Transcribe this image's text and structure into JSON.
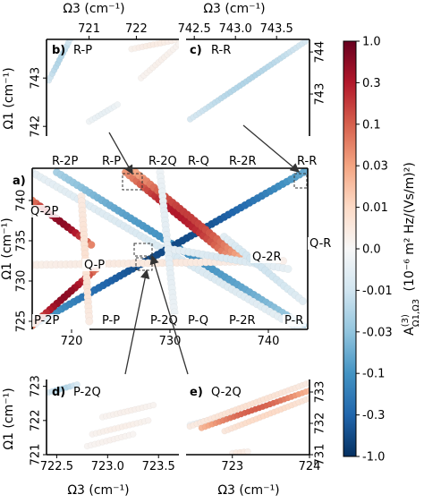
{
  "chart_data": {
    "type": "scatter",
    "colorbar": {
      "label_main": "A",
      "label_sup": "(3)",
      "label_sub": "Ω1,Ω3",
      "label_units": "(10⁻⁶ m² Hz/(Vs/m)²)",
      "ticks": [
        "1.0",
        "0.3",
        "0.1",
        "0.03",
        "0.01",
        "0.0",
        "-0.01",
        "-0.03",
        "-0.1",
        "-0.3",
        "-1.0"
      ],
      "colormap": [
        "#67001f",
        "#b2182b",
        "#d6604d",
        "#f4a582",
        "#fddbc7",
        "#f7f7f7",
        "#d1e5f0",
        "#92c5de",
        "#4393c3",
        "#2166ac",
        "#053061"
      ]
    },
    "panels": [
      {
        "id": "a",
        "label": "a)",
        "xlim": [
          716,
          744
        ],
        "ylim": [
          724,
          744
        ],
        "xticks": [
          "720",
          "730",
          "740"
        ],
        "xtick_values": [
          720,
          730,
          740
        ],
        "yticks": [
          "725",
          "730",
          "735",
          "740"
        ],
        "ytick_values": [
          725,
          730,
          735,
          740
        ],
        "xlabel": "",
        "ylabel": "Ω1 (cm⁻¹)",
        "region_labels": [
          "R-2P",
          "R-P",
          "R-2Q",
          "R-Q",
          "R-2R",
          "R-R",
          "Q-2P",
          "Q-P",
          "Q-2R",
          "Q-R",
          "P-2P",
          "P-P",
          "P-2Q",
          "P-Q",
          "P-2R",
          "P-R"
        ],
        "series": [
          {
            "from": [
              718.5,
              743.5
            ],
            "to": [
              743.5,
              724.5
            ],
            "value": -0.6
          },
          {
            "from": [
              716.0,
              743.5
            ],
            "to": [
              743.5,
              723.8
            ],
            "value": -0.15
          },
          {
            "from": [
              716.0,
              724.5
            ],
            "to": [
              744.0,
              743.8
            ],
            "value": -0.9
          },
          {
            "from": [
              725.5,
              743.5
            ],
            "to": [
              736.0,
              733.0
            ],
            "value": 0.8
          },
          {
            "from": [
              726.5,
              743.5
            ],
            "to": [
              737.0,
              733.0
            ],
            "value": 0.7
          },
          {
            "from": [
              716.0,
              740.0
            ],
            "to": [
              722.0,
              734.5
            ],
            "value": 0.9
          },
          {
            "from": [
              722.5,
              731.5
            ],
            "to": [
              716.0,
              724.5
            ],
            "value": 0.9
          },
          {
            "from": [
              721.0,
              740.5
            ],
            "to": [
              721.8,
              725.0
            ],
            "value": 0.15
          },
          {
            "from": [
              716.0,
              732.0
            ],
            "to": [
              741.5,
              732.5
            ],
            "value": 0.1
          },
          {
            "from": [
              730.0,
              734.0
            ],
            "to": [
              742.0,
              731.5
            ],
            "value": -0.15
          },
          {
            "from": [
              729.0,
              743.5
            ],
            "to": [
              730.5,
              725.5
            ],
            "value": -0.1
          },
          {
            "from": [
              735.5,
              735.5
            ],
            "to": [
              743.5,
              727.5
            ],
            "value": -0.2
          }
        ]
      },
      {
        "id": "b",
        "label": "b)",
        "region": "R-P",
        "xlim": [
          720.1,
          722.9
        ],
        "ylim": [
          741.8,
          743.8
        ],
        "xticks": [
          "721",
          "722"
        ],
        "xtick_values": [
          721,
          722
        ],
        "yticks": [
          "742",
          "743"
        ],
        "ytick_values": [
          742,
          743
        ],
        "xlabel": "Ω3 (cm⁻¹)",
        "ylabel": "Ω1 (cm⁻¹)",
        "series": [
          {
            "from": [
              720.15,
              742.95
            ],
            "to": [
              720.6,
              743.8
            ],
            "value": -0.3
          },
          {
            "from": [
              721.9,
              743.6
            ],
            "to": [
              722.9,
              743.8
            ],
            "value": 0.08
          },
          {
            "from": [
              722.1,
              743.0
            ],
            "to": [
              722.9,
              743.7
            ],
            "value": 0.05
          },
          {
            "from": [
              721.0,
              742.1
            ],
            "to": [
              721.6,
              742.45
            ],
            "value": -0.08
          }
        ]
      },
      {
        "id": "c",
        "label": "c)",
        "region": "R-R",
        "xlim": [
          742.4,
          743.9
        ],
        "ylim": [
          742.0,
          744.3
        ],
        "xticks": [
          "742.5",
          "743.0",
          "743.5"
        ],
        "xtick_values": [
          742.5,
          743.0,
          743.5
        ],
        "yticks": [
          "743",
          "744"
        ],
        "ytick_values": [
          743,
          744
        ],
        "xlabel": "Ω3 (cm⁻¹)",
        "ylabel": "",
        "series": [
          {
            "from": [
              742.45,
              742.4
            ],
            "to": [
              743.85,
              744.25
            ],
            "value": -0.3
          }
        ]
      },
      {
        "id": "d",
        "label": "d)",
        "region": "P-2Q",
        "xlim": [
          722.4,
          723.7
        ],
        "ylim": [
          721.0,
          723.2
        ],
        "xticks": [
          "722.5",
          "723.0",
          "723.5"
        ],
        "xtick_values": [
          722.5,
          723.0,
          723.5
        ],
        "yticks": [
          "721",
          "722",
          "723"
        ],
        "ytick_values": [
          721,
          722,
          723
        ],
        "xlabel": "Ω3 (cm⁻¹)",
        "ylabel": "Ω1 (cm⁻¹)",
        "series": [
          {
            "from": [
              722.42,
              722.82
            ],
            "to": [
              722.7,
              723.05
            ],
            "value": -0.3
          },
          {
            "from": [
              722.95,
              722.1
            ],
            "to": [
              723.45,
              722.45
            ],
            "value": 0.05
          },
          {
            "from": [
              722.85,
              721.6
            ],
            "to": [
              723.4,
              722.0
            ],
            "value": 0.06
          },
          {
            "from": [
              722.8,
              721.25
            ],
            "to": [
              723.25,
              721.6
            ],
            "value": 0.04
          }
        ]
      },
      {
        "id": "e",
        "label": "e)",
        "region": "Q-2Q",
        "xlim": [
          722.4,
          724.0
        ],
        "ylim": [
          731.0,
          733.4
        ],
        "xticks": [
          "723",
          "724"
        ],
        "xtick_values": [
          723,
          724
        ],
        "yticks": [
          "731",
          "732",
          "733"
        ],
        "ytick_values": [
          731,
          732,
          733
        ],
        "xlabel": "Ω3 (cm⁻¹)",
        "ylabel": "",
        "series": [
          {
            "from": [
              722.45,
              731.95
            ],
            "to": [
              723.0,
              732.3
            ],
            "value": -0.06
          },
          {
            "from": [
              722.45,
              731.9
            ],
            "to": [
              724.0,
              733.3
            ],
            "value": 0.15
          },
          {
            "from": [
              722.6,
              731.85
            ],
            "to": [
              724.0,
              733.05
            ],
            "value": 0.6
          },
          {
            "from": [
              722.9,
              731.75
            ],
            "to": [
              724.0,
              732.8
            ],
            "value": 0.2
          },
          {
            "from": [
              723.0,
              731.05
            ],
            "to": [
              723.2,
              731.1
            ],
            "value": 0.1
          }
        ]
      }
    ]
  }
}
